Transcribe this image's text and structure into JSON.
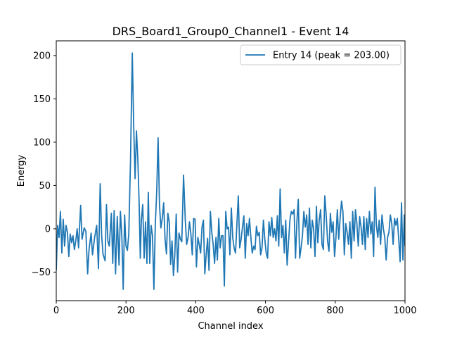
{
  "chart_data": {
    "type": "line",
    "title": "DRS_Board1_Group0_Channel1 - Event 14",
    "xlabel": "Channel index",
    "ylabel": "Energy",
    "xlim": [
      0,
      1000
    ],
    "ylim": [
      -83,
      217
    ],
    "xticks": [
      0,
      200,
      400,
      600,
      800,
      1000
    ],
    "yticks": [
      -50,
      0,
      50,
      100,
      150,
      200
    ],
    "grid": false,
    "legend_position": "upper-right",
    "series": [
      {
        "name": "Entry 14 (peak = 203.00)",
        "color": "#1f77b4",
        "points": [
          [
            0,
            -48
          ],
          [
            4,
            4
          ],
          [
            8,
            -10
          ],
          [
            12,
            20
          ],
          [
            16,
            -28
          ],
          [
            20,
            11
          ],
          [
            24,
            -20
          ],
          [
            28,
            4
          ],
          [
            32,
            -4
          ],
          [
            36,
            -32
          ],
          [
            40,
            -6
          ],
          [
            44,
            -16
          ],
          [
            48,
            -8
          ],
          [
            52,
            -24
          ],
          [
            56,
            -14
          ],
          [
            60,
            0
          ],
          [
            64,
            -22
          ],
          [
            70,
            27
          ],
          [
            74,
            -12
          ],
          [
            80,
            1
          ],
          [
            85,
            -3
          ],
          [
            90,
            -52
          ],
          [
            94,
            -24
          ],
          [
            100,
            -5
          ],
          [
            104,
            -30
          ],
          [
            110,
            -10
          ],
          [
            116,
            4
          ],
          [
            121,
            -46
          ],
          [
            126,
            52
          ],
          [
            130,
            -6
          ],
          [
            134,
            -29
          ],
          [
            140,
            -37
          ],
          [
            144,
            28
          ],
          [
            148,
            -14
          ],
          [
            152,
            -20
          ],
          [
            158,
            18
          ],
          [
            162,
            -40
          ],
          [
            166,
            21
          ],
          [
            170,
            -52
          ],
          [
            175,
            14
          ],
          [
            180,
            -42
          ],
          [
            184,
            20
          ],
          [
            188,
            -8
          ],
          [
            192,
            -70
          ],
          [
            196,
            16
          ],
          [
            200,
            -20
          ],
          [
            204,
            -25
          ],
          [
            208,
            -6
          ],
          [
            213,
            80
          ],
          [
            218,
            203
          ],
          [
            222,
            120
          ],
          [
            226,
            58
          ],
          [
            230,
            113
          ],
          [
            234,
            80
          ],
          [
            238,
            24
          ],
          [
            241,
            -34
          ],
          [
            244,
            10
          ],
          [
            248,
            28
          ],
          [
            252,
            -34
          ],
          [
            256,
            8
          ],
          [
            260,
            -40
          ],
          [
            264,
            42
          ],
          [
            268,
            -40
          ],
          [
            272,
            4
          ],
          [
            276,
            -8
          ],
          [
            280,
            -70
          ],
          [
            284,
            5
          ],
          [
            288,
            42
          ],
          [
            292,
            105
          ],
          [
            296,
            28
          ],
          [
            300,
            1
          ],
          [
            304,
            12
          ],
          [
            308,
            30
          ],
          [
            312,
            -12
          ],
          [
            316,
            -29
          ],
          [
            320,
            18
          ],
          [
            324,
            8
          ],
          [
            328,
            -41
          ],
          [
            332,
            -14
          ],
          [
            336,
            -54
          ],
          [
            340,
            -30
          ],
          [
            344,
            17
          ],
          [
            348,
            -50
          ],
          [
            352,
            -5
          ],
          [
            356,
            -12
          ],
          [
            360,
            -15
          ],
          [
            365,
            62
          ],
          [
            370,
            10
          ],
          [
            374,
            -18
          ],
          [
            378,
            -10
          ],
          [
            382,
            8
          ],
          [
            386,
            -6
          ],
          [
            390,
            -30
          ],
          [
            394,
            12
          ],
          [
            398,
            11
          ],
          [
            402,
            -44
          ],
          [
            406,
            -10
          ],
          [
            410,
            -18
          ],
          [
            414,
            -28
          ],
          [
            418,
            2
          ],
          [
            422,
            10
          ],
          [
            426,
            -52
          ],
          [
            430,
            -30
          ],
          [
            434,
            -11
          ],
          [
            438,
            -48
          ],
          [
            442,
            20
          ],
          [
            446,
            -4
          ],
          [
            450,
            -18
          ],
          [
            454,
            -40
          ],
          [
            458,
            -10
          ],
          [
            462,
            -36
          ],
          [
            466,
            12
          ],
          [
            470,
            -22
          ],
          [
            474,
            -8
          ],
          [
            478,
            -8
          ],
          [
            482,
            -66
          ],
          [
            486,
            20
          ],
          [
            490,
            0
          ],
          [
            494,
            2
          ],
          [
            498,
            -30
          ],
          [
            502,
            24
          ],
          [
            506,
            -10
          ],
          [
            510,
            -22
          ],
          [
            514,
            -28
          ],
          [
            518,
            5
          ],
          [
            522,
            38
          ],
          [
            526,
            -22
          ],
          [
            530,
            -12
          ],
          [
            534,
            2
          ],
          [
            538,
            15
          ],
          [
            542,
            -34
          ],
          [
            546,
            6
          ],
          [
            550,
            -8
          ],
          [
            554,
            12
          ],
          [
            558,
            -10
          ],
          [
            562,
            -28
          ],
          [
            566,
            -20
          ],
          [
            570,
            -24
          ],
          [
            574,
            3
          ],
          [
            578,
            -8
          ],
          [
            582,
            -4
          ],
          [
            586,
            -30
          ],
          [
            590,
            -22
          ],
          [
            594,
            10
          ],
          [
            598,
            -12
          ],
          [
            602,
            -28
          ],
          [
            606,
            -34
          ],
          [
            610,
            8
          ],
          [
            614,
            -8
          ],
          [
            618,
            13
          ],
          [
            622,
            -10
          ],
          [
            626,
            0
          ],
          [
            630,
            -14
          ],
          [
            634,
            15
          ],
          [
            638,
            -20
          ],
          [
            642,
            46
          ],
          [
            646,
            -10
          ],
          [
            650,
            4
          ],
          [
            654,
            -28
          ],
          [
            658,
            10
          ],
          [
            662,
            -42
          ],
          [
            666,
            -16
          ],
          [
            670,
            10
          ],
          [
            674,
            20
          ],
          [
            678,
            17
          ],
          [
            682,
            22
          ],
          [
            686,
            -34
          ],
          [
            690,
            8
          ],
          [
            694,
            34
          ],
          [
            698,
            -34
          ],
          [
            702,
            -22
          ],
          [
            706,
            -8
          ],
          [
            710,
            20
          ],
          [
            714,
            2
          ],
          [
            718,
            16
          ],
          [
            722,
            -18
          ],
          [
            726,
            24
          ],
          [
            730,
            -22
          ],
          [
            734,
            10
          ],
          [
            738,
            0
          ],
          [
            742,
            -32
          ],
          [
            746,
            26
          ],
          [
            750,
            -16
          ],
          [
            754,
            10
          ],
          [
            758,
            22
          ],
          [
            762,
            -18
          ],
          [
            766,
            -24
          ],
          [
            770,
            38
          ],
          [
            774,
            16
          ],
          [
            778,
            -14
          ],
          [
            782,
            -26
          ],
          [
            786,
            18
          ],
          [
            790,
            -4
          ],
          [
            794,
            8
          ],
          [
            798,
            -32
          ],
          [
            802,
            -10
          ],
          [
            806,
            22
          ],
          [
            810,
            -12
          ],
          [
            814,
            12
          ],
          [
            818,
            32
          ],
          [
            822,
            20
          ],
          [
            826,
            -30
          ],
          [
            830,
            6
          ],
          [
            834,
            -4
          ],
          [
            838,
            -18
          ],
          [
            842,
            8
          ],
          [
            846,
            -34
          ],
          [
            850,
            20
          ],
          [
            854,
            -14
          ],
          [
            858,
            22
          ],
          [
            862,
            6
          ],
          [
            866,
            -20
          ],
          [
            870,
            14
          ],
          [
            874,
            2
          ],
          [
            878,
            -18
          ],
          [
            882,
            14
          ],
          [
            886,
            -24
          ],
          [
            890,
            12
          ],
          [
            894,
            -10
          ],
          [
            898,
            20
          ],
          [
            902,
            -6
          ],
          [
            906,
            8
          ],
          [
            910,
            -32
          ],
          [
            914,
            48
          ],
          [
            918,
            4
          ],
          [
            922,
            -10
          ],
          [
            926,
            10
          ],
          [
            930,
            -18
          ],
          [
            934,
            16
          ],
          [
            938,
            0
          ],
          [
            942,
            -10
          ],
          [
            946,
            -36
          ],
          [
            950,
            -10
          ],
          [
            954,
            -4
          ],
          [
            958,
            16
          ],
          [
            962,
            6
          ],
          [
            966,
            -18
          ],
          [
            970,
            12
          ],
          [
            974,
            4
          ],
          [
            978,
            12
          ],
          [
            982,
            -12
          ],
          [
            986,
            -38
          ],
          [
            990,
            30
          ],
          [
            994,
            -36
          ],
          [
            998,
            16
          ],
          [
            1000,
            -20
          ]
        ]
      }
    ]
  }
}
